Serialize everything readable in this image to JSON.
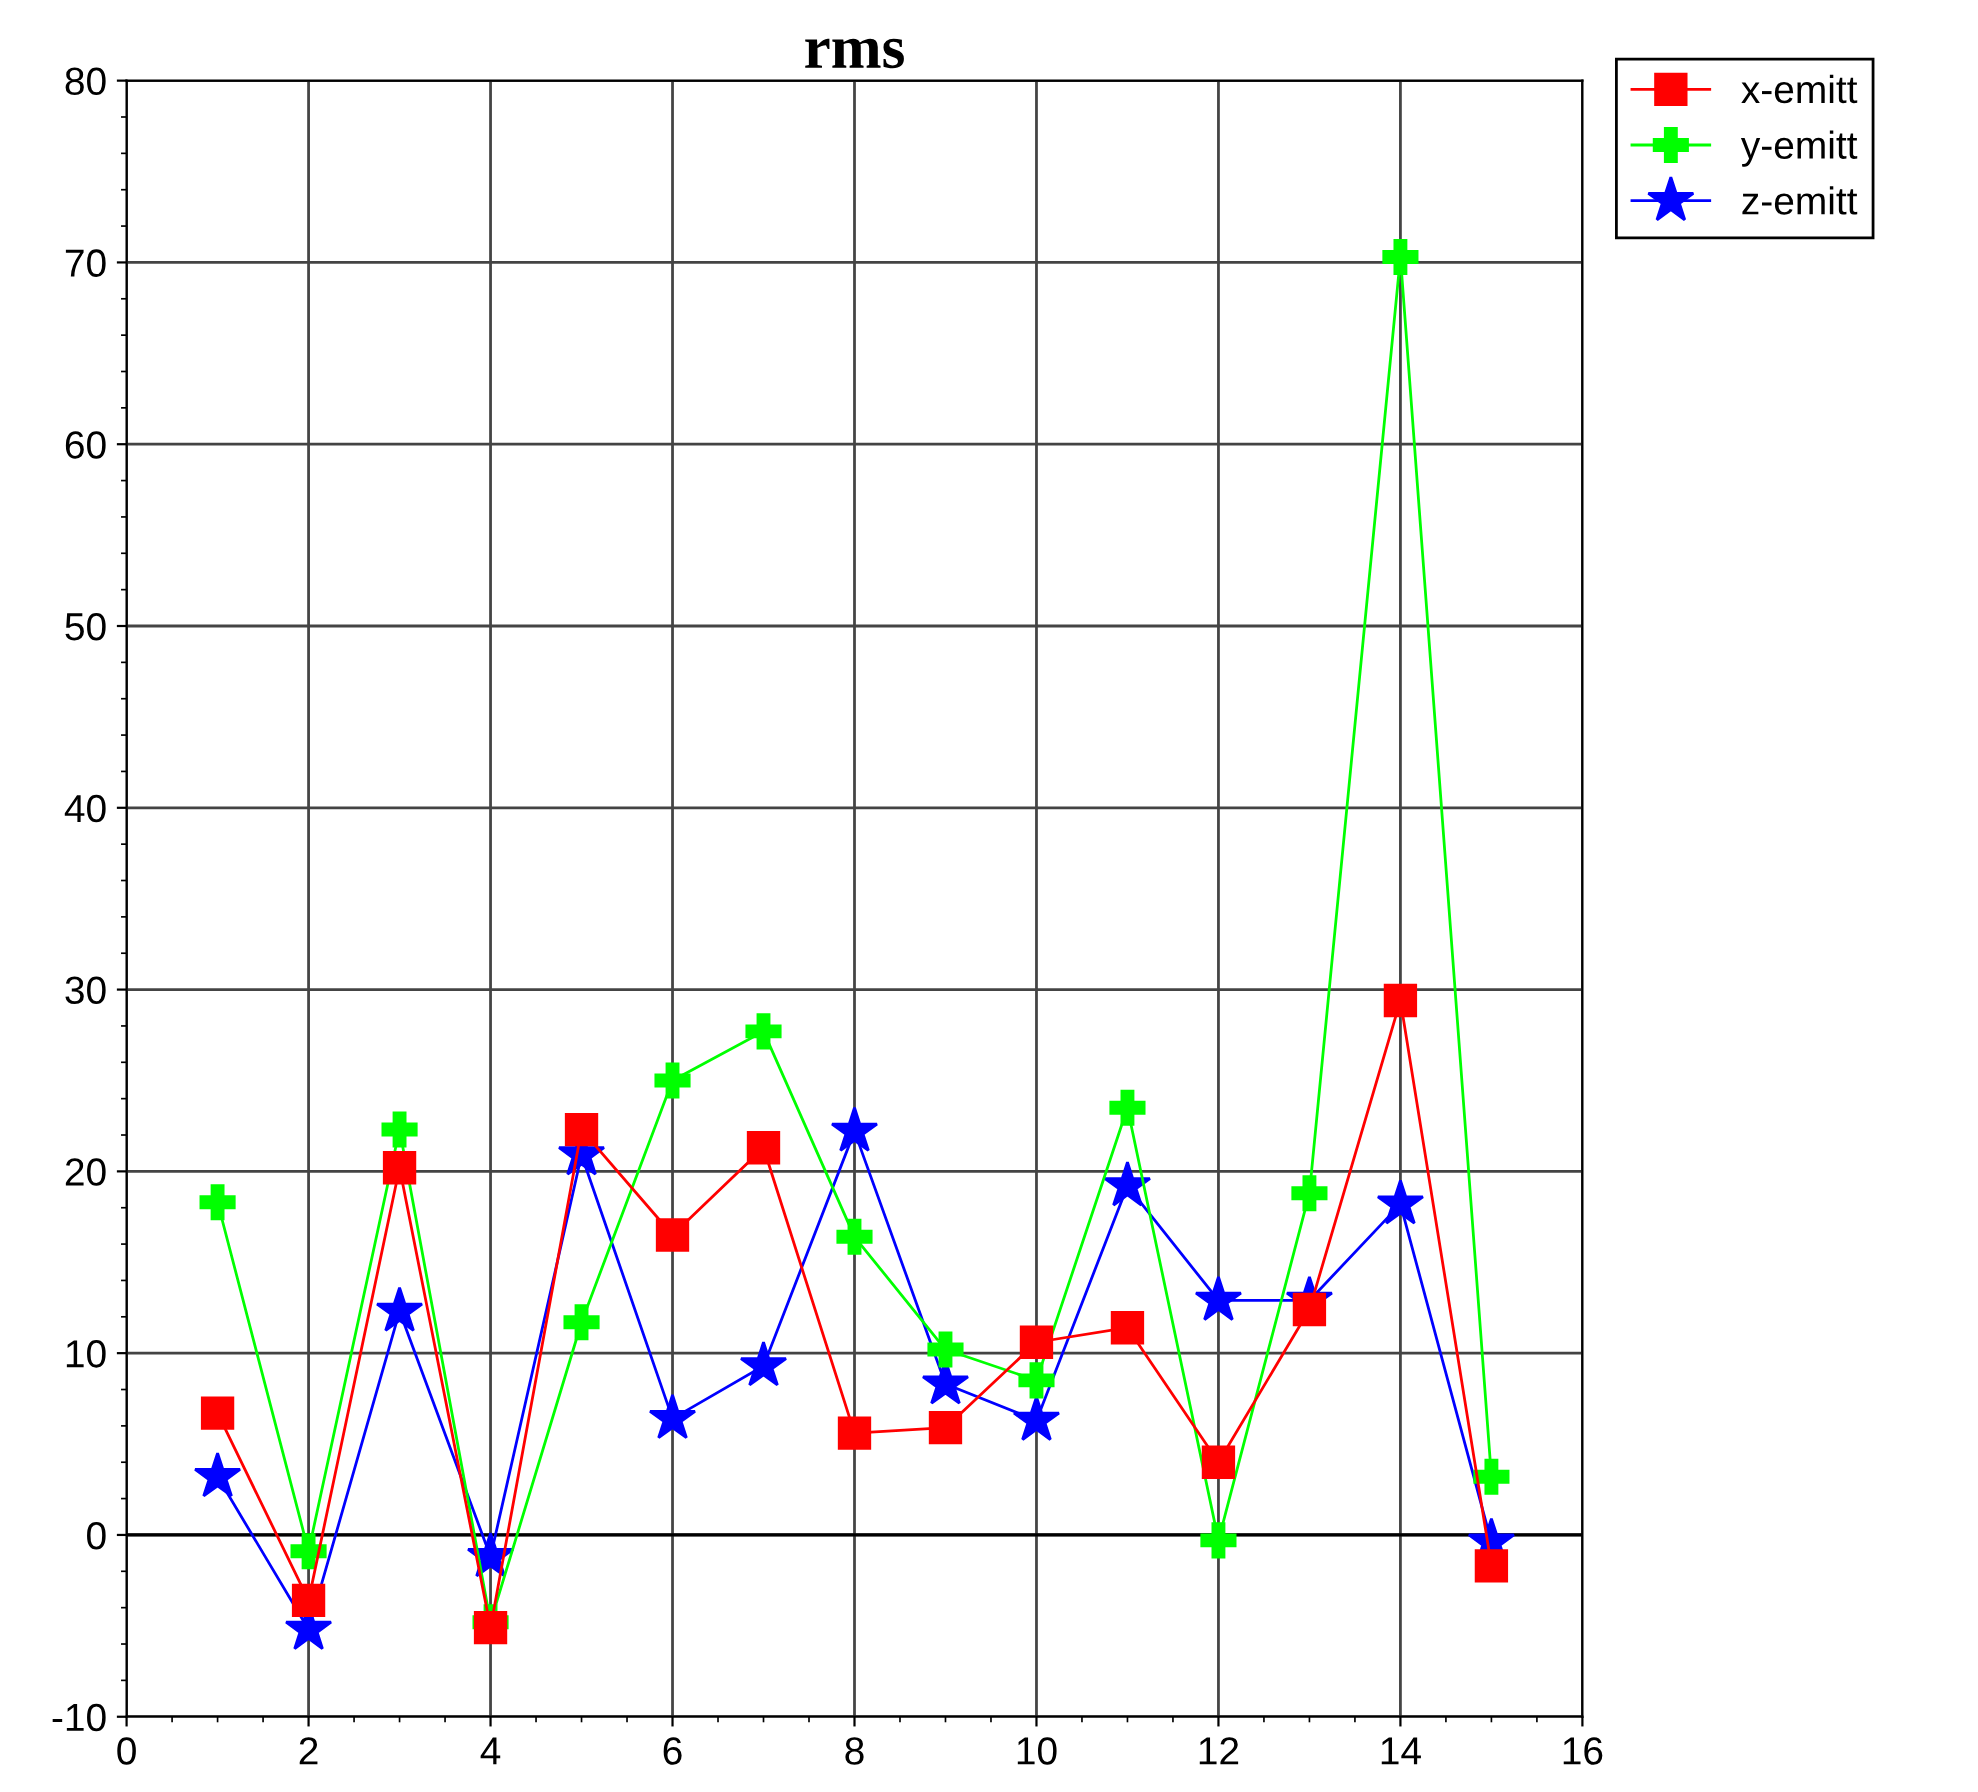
{
  "chart_data": {
    "type": "line",
    "title": "rms",
    "x": [
      1,
      2,
      3,
      4,
      5,
      6,
      7,
      8,
      9,
      10,
      11,
      12,
      13,
      14,
      15
    ],
    "series": [
      {
        "name": "x-emitt",
        "color": "#ff0000",
        "marker": "square",
        "values": [
          6.7,
          -3.6,
          20.2,
          -5.1,
          22.3,
          16.5,
          21.3,
          5.6,
          5.9,
          10.6,
          11.4,
          4.0,
          12.4,
          29.4,
          -1.7
        ]
      },
      {
        "name": "y-emitt",
        "color": "#00ff00",
        "marker": "cross",
        "values": [
          18.3,
          -0.9,
          22.3,
          -4.8,
          11.7,
          25.0,
          27.7,
          16.4,
          10.2,
          8.5,
          23.5,
          -0.3,
          18.8,
          70.3,
          3.2
        ]
      },
      {
        "name": "z-emitt",
        "color": "#0000ff",
        "marker": "star",
        "values": [
          3.2,
          -5.2,
          12.3,
          -1.2,
          20.9,
          6.4,
          9.3,
          22.2,
          8.3,
          6.3,
          19.2,
          12.9,
          12.9,
          18.2,
          -0.4
        ]
      }
    ],
    "xlim": [
      0,
      16
    ],
    "xticks": [
      0,
      2,
      4,
      6,
      8,
      10,
      12,
      14,
      16
    ],
    "ylim": [
      -10,
      80
    ],
    "yticks": [
      -10,
      0,
      10,
      20,
      30,
      40,
      50,
      60,
      70,
      80
    ],
    "ref_lines": [
      {
        "axis": "y",
        "value": 0,
        "color": "#000000"
      }
    ],
    "grid": true,
    "legend": "top right",
    "line_style": "solid"
  }
}
